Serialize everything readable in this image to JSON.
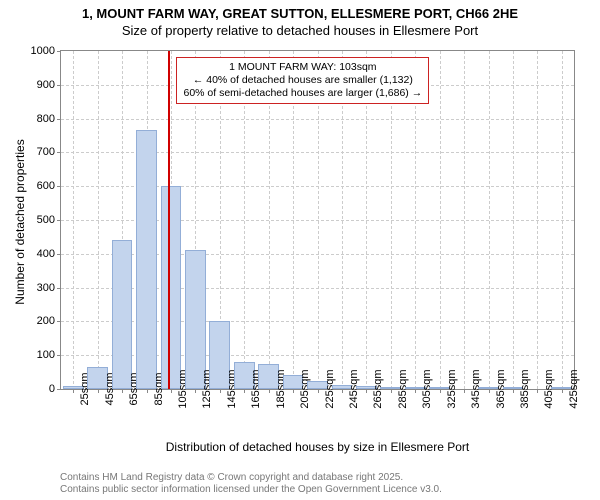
{
  "title_line1": "1, MOUNT FARM WAY, GREAT SUTTON, ELLESMERE PORT, CH66 2HE",
  "title_line2": "Size of property relative to detached houses in Ellesmere Port",
  "ylabel": "Number of detached properties",
  "xlabel": "Distribution of detached houses by size in Ellesmere Port",
  "chart": {
    "type": "bar",
    "bar_color": "#c3d4ed",
    "bar_border_color": "#93aed7",
    "background_color": "#ffffff",
    "grid_color": "#cccccc",
    "axis_color": "#888888",
    "ylim": [
      0,
      1000
    ],
    "ytick_step": 100,
    "x_start": 25,
    "x_step": 20,
    "x_count": 21,
    "x_unit": "sqm",
    "bar_width_ratio": 0.85,
    "values": [
      10,
      65,
      440,
      765,
      600,
      410,
      200,
      80,
      75,
      40,
      25,
      12,
      10,
      5,
      5,
      3,
      0,
      2,
      2,
      0,
      2
    ]
  },
  "reference": {
    "x_value": 103,
    "line_color": "#d00000",
    "box_border_color": "#c22",
    "line1": "1 MOUNT FARM WAY: 103sqm",
    "line2": "← 40% of detached houses are smaller (1,132)",
    "line3": "60% of semi-detached houses are larger (1,686) →"
  },
  "footer_line1": "Contains HM Land Registry data © Crown copyright and database right 2025.",
  "footer_line2": "Contains public sector information licensed under the Open Government Licence v3.0."
}
